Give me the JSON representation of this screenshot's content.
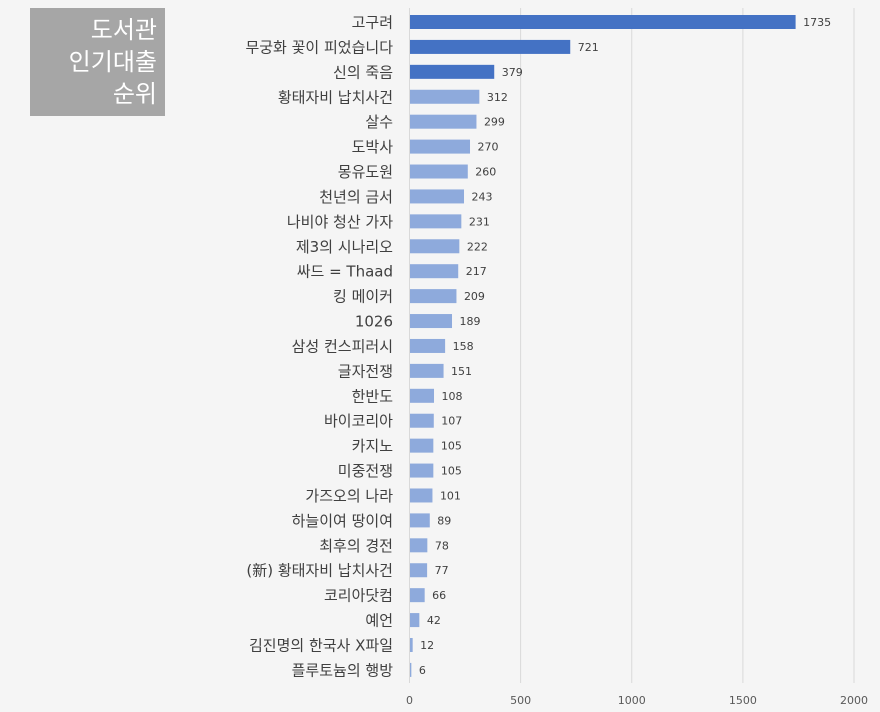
{
  "chart_data": {
    "type": "bar",
    "orientation": "horizontal",
    "title_lines": [
      "도서관",
      "인기대출",
      "순위"
    ],
    "categories": [
      "고구려",
      "무궁화 꽃이 피었습니다",
      "신의 죽음",
      "황태자비 납치사건",
      "살수",
      "도박사",
      "몽유도원",
      "천년의 금서",
      "나비야 청산 가자",
      "제3의 시나리오",
      "싸드 = Thaad",
      "킹 메이커",
      "1026",
      "삼성 컨스피러시",
      "글자전쟁",
      "한반도",
      "바이코리아",
      "카지노",
      "미중전쟁",
      "가즈오의 나라",
      "하늘이여 땅이여",
      "최후의 경전",
      "(新) 황태자비 납치사건",
      "코리아닷컴",
      "예언",
      "김진명의 한국사 X파일",
      "플루토늄의 행방"
    ],
    "values": [
      1735,
      721,
      379,
      312,
      299,
      270,
      260,
      243,
      231,
      222,
      217,
      209,
      189,
      158,
      151,
      108,
      107,
      105,
      105,
      101,
      89,
      78,
      77,
      66,
      42,
      12,
      6
    ],
    "xlim": [
      0,
      2000
    ],
    "xticks": [
      0,
      500,
      1000,
      1500,
      2000
    ],
    "grid": true,
    "highlight_count": 3,
    "colors": {
      "highlight": "#4472c4",
      "normal": "#8eaadc",
      "grid": "#d9d9d9"
    }
  }
}
